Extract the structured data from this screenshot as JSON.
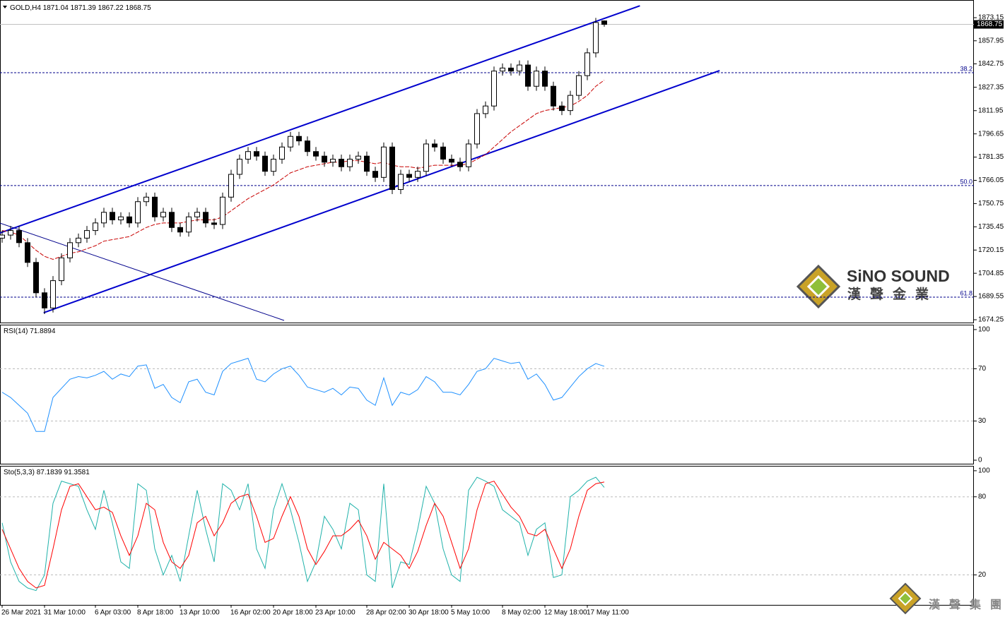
{
  "chart_data": [
    {
      "type": "candlestick",
      "title": "GOLD,H4",
      "categories": [
        "26 Mar 2021",
        null,
        null,
        null,
        null,
        "31 Mar 10:00",
        null,
        null,
        null,
        null,
        null,
        "6 Apr 03:00",
        null,
        null,
        null,
        null,
        "8 Apr 18:00",
        null,
        null,
        null,
        null,
        "13 Apr 10:00",
        null,
        null,
        null,
        null,
        null,
        "16 Apr 02:00",
        null,
        null,
        null,
        null,
        "20 Apr 18:00",
        null,
        null,
        null,
        null,
        "23 Apr 10:00",
        null,
        null,
        null,
        null,
        null,
        "28 Apr 02:00",
        null,
        null,
        null,
        null,
        "30 Apr 18:00",
        null,
        null,
        null,
        null,
        "5 May 10:00",
        null,
        null,
        null,
        null,
        null,
        "8 May 02:00",
        null,
        null,
        null,
        null,
        "12 May 18:00",
        null,
        null,
        null,
        null,
        "17 May 11:00",
        null,
        null
      ],
      "candles": [
        [
          1728,
          1733,
          1725,
          1730
        ],
        [
          1730,
          1736,
          1727,
          1733
        ],
        [
          1733,
          1736,
          1722,
          1725
        ],
        [
          1725,
          1728,
          1709,
          1712
        ],
        [
          1712,
          1715,
          1689,
          1692
        ],
        [
          1692,
          1695,
          1678,
          1682
        ],
        [
          1682,
          1703,
          1679,
          1700
        ],
        [
          1700,
          1718,
          1697,
          1715
        ],
        [
          1715,
          1728,
          1712,
          1725
        ],
        [
          1725,
          1731,
          1722,
          1728
        ],
        [
          1728,
          1736,
          1725,
          1733
        ],
        [
          1733,
          1741,
          1730,
          1738
        ],
        [
          1738,
          1748,
          1735,
          1745
        ],
        [
          1745,
          1748,
          1737,
          1740
        ],
        [
          1740,
          1745,
          1737,
          1742
        ],
        [
          1742,
          1745,
          1735,
          1738
        ],
        [
          1738,
          1755,
          1735,
          1752
        ],
        [
          1752,
          1758,
          1749,
          1755
        ],
        [
          1755,
          1758,
          1739,
          1742
        ],
        [
          1742,
          1748,
          1739,
          1745
        ],
        [
          1745,
          1748,
          1732,
          1735
        ],
        [
          1735,
          1738,
          1729,
          1732
        ],
        [
          1732,
          1745,
          1729,
          1742
        ],
        [
          1742,
          1748,
          1739,
          1745
        ],
        [
          1745,
          1748,
          1735,
          1738
        ],
        [
          1738,
          1741,
          1734,
          1737
        ],
        [
          1737,
          1758,
          1734,
          1755
        ],
        [
          1755,
          1773,
          1752,
          1770
        ],
        [
          1770,
          1783,
          1767,
          1780
        ],
        [
          1780,
          1788,
          1777,
          1785
        ],
        [
          1785,
          1788,
          1779,
          1782
        ],
        [
          1782,
          1785,
          1769,
          1772
        ],
        [
          1772,
          1783,
          1769,
          1780
        ],
        [
          1780,
          1791,
          1777,
          1788
        ],
        [
          1788,
          1798,
          1785,
          1795
        ],
        [
          1795,
          1798,
          1789,
          1792
        ],
        [
          1792,
          1795,
          1782,
          1785
        ],
        [
          1785,
          1788,
          1779,
          1782
        ],
        [
          1782,
          1785,
          1775,
          1778
        ],
        [
          1778,
          1783,
          1775,
          1780
        ],
        [
          1780,
          1783,
          1772,
          1775
        ],
        [
          1775,
          1783,
          1772,
          1780
        ],
        [
          1780,
          1785,
          1777,
          1782
        ],
        [
          1782,
          1785,
          1769,
          1772
        ],
        [
          1772,
          1775,
          1765,
          1768
        ],
        [
          1768,
          1791,
          1765,
          1788
        ],
        [
          1788,
          1791,
          1757,
          1760
        ],
        [
          1760,
          1773,
          1757,
          1770
        ],
        [
          1770,
          1773,
          1765,
          1768
        ],
        [
          1768,
          1775,
          1765,
          1772
        ],
        [
          1772,
          1793,
          1769,
          1790
        ],
        [
          1790,
          1793,
          1785,
          1788
        ],
        [
          1788,
          1791,
          1777,
          1780
        ],
        [
          1780,
          1783,
          1775,
          1778
        ],
        [
          1778,
          1781,
          1772,
          1775
        ],
        [
          1775,
          1793,
          1772,
          1790
        ],
        [
          1790,
          1813,
          1787,
          1810
        ],
        [
          1810,
          1818,
          1807,
          1815
        ],
        [
          1815,
          1841,
          1812,
          1838
        ],
        [
          1838,
          1843,
          1835,
          1840
        ],
        [
          1840,
          1843,
          1835,
          1838
        ],
        [
          1838,
          1845,
          1835,
          1842
        ],
        [
          1842,
          1845,
          1825,
          1828
        ],
        [
          1828,
          1841,
          1825,
          1838
        ],
        [
          1838,
          1841,
          1825,
          1828
        ],
        [
          1828,
          1831,
          1812,
          1815
        ],
        [
          1815,
          1818,
          1809,
          1812
        ],
        [
          1812,
          1825,
          1809,
          1822
        ],
        [
          1822,
          1838,
          1819,
          1835
        ],
        [
          1835,
          1853,
          1832,
          1850
        ],
        [
          1850,
          1873,
          1847,
          1870
        ],
        [
          1871.04,
          1871.39,
          1867.22,
          1868.75
        ]
      ],
      "overlay": {
        "color": "#c80000",
        "values": [
          1733,
          1732,
          1730,
          1725,
          1720,
          1716,
          1714,
          1716,
          1718,
          1719,
          1721,
          1723,
          1726,
          1727,
          1728,
          1729,
          1732,
          1735,
          1737,
          1738,
          1738,
          1738,
          1739,
          1740,
          1740,
          1740,
          1742,
          1746,
          1750,
          1754,
          1757,
          1760,
          1763,
          1767,
          1771,
          1773,
          1775,
          1776,
          1777,
          1778,
          1778,
          1779,
          1779,
          1778,
          1777,
          1778,
          1776,
          1775,
          1775,
          1774,
          1775,
          1776,
          1776,
          1776,
          1776,
          1777,
          1780,
          1783,
          1788,
          1793,
          1798,
          1802,
          1806,
          1810,
          1812,
          1813,
          1814,
          1815,
          1818,
          1822,
          1828,
          1832
        ]
      },
      "trendlines": [
        {
          "x": [
            -0.25,
            75.2
          ],
          "y": [
            1731.4,
            1881.0
          ],
          "color": "#0000cd",
          "width": 2
        },
        {
          "x": [
            4.9,
            84.6
          ],
          "y": [
            1678.9,
            1838.3
          ],
          "color": "#0000cd",
          "width": 2
        },
        {
          "x": [
            -0.25,
            33.25
          ],
          "y": [
            1737.9,
            1673.8
          ],
          "color": "#00008b",
          "width": 1
        }
      ],
      "levels": [
        {
          "label": "38.2",
          "value": 1836.9
        },
        {
          "label": "50.0",
          "value": 1762.6
        },
        {
          "label": "61.8",
          "value": 1689.15
        }
      ],
      "ylim": [
        1672.4,
        1884.8
      ],
      "yticks": [
        1873.15,
        1857.95,
        1842.75,
        1827.35,
        1811.95,
        1796.65,
        1781.35,
        1766.05,
        1750.75,
        1735.45,
        1720.15,
        1704.85,
        1689.55,
        1674.25
      ],
      "watermark": {
        "latin": "SiNO SOUND",
        "chinese": "漢聲金業",
        "footer": "漢聲集團"
      }
    },
    {
      "type": "line",
      "title": "RSI(14)",
      "series": [
        {
          "color": "#1e90ff",
          "values": [
            52,
            48,
            42,
            36,
            22,
            22,
            48,
            55,
            62,
            64,
            63,
            65,
            68,
            62,
            66,
            64,
            72,
            73,
            55,
            58,
            48,
            44,
            60,
            62,
            52,
            50,
            68,
            74,
            76,
            78,
            62,
            60,
            66,
            70,
            72,
            65,
            56,
            54,
            52,
            55,
            50,
            56,
            55,
            46,
            42,
            63,
            42,
            52,
            50,
            54,
            64,
            60,
            52,
            52,
            50,
            58,
            68,
            70,
            78,
            76,
            74,
            75,
            62,
            66,
            58,
            46,
            48,
            56,
            64,
            70,
            74,
            71.8894
          ]
        }
      ],
      "ylim": [
        -2.7,
        103.2
      ],
      "yticks": [
        100,
        70,
        30,
        0
      ],
      "levels": [
        70,
        30
      ]
    },
    {
      "type": "line",
      "title": "Sto(5,3,3)",
      "series": [
        {
          "color": "#20b2aa",
          "values": [
            60,
            30,
            15,
            10,
            8,
            20,
            75,
            92,
            90,
            88,
            70,
            55,
            85,
            60,
            30,
            25,
            90,
            85,
            40,
            20,
            35,
            15,
            50,
            85,
            55,
            30,
            90,
            85,
            70,
            90,
            40,
            25,
            70,
            90,
            70,
            45,
            15,
            30,
            65,
            55,
            40,
            75,
            70,
            20,
            15,
            90,
            10,
            30,
            28,
            55,
            88,
            75,
            40,
            20,
            15,
            85,
            95,
            92,
            88,
            70,
            65,
            60,
            35,
            55,
            60,
            18,
            20,
            80,
            85,
            92,
            95,
            87.1839
          ]
        },
        {
          "color": "#ff0000",
          "values": [
            55,
            40,
            25,
            15,
            10,
            12,
            40,
            70,
            88,
            90,
            80,
            70,
            72,
            68,
            50,
            35,
            50,
            75,
            70,
            45,
            30,
            25,
            35,
            60,
            65,
            50,
            60,
            75,
            80,
            82,
            65,
            45,
            48,
            65,
            80,
            65,
            40,
            28,
            38,
            50,
            50,
            55,
            62,
            50,
            32,
            45,
            40,
            35,
            25,
            38,
            58,
            75,
            65,
            45,
            25,
            40,
            70,
            90,
            92,
            82,
            72,
            65,
            52,
            50,
            55,
            40,
            25,
            40,
            65,
            85,
            90,
            91.3581
          ]
        }
      ],
      "ylim": [
        -3,
        103.2
      ],
      "yticks": [
        100,
        80,
        20
      ],
      "levels": [
        80,
        20
      ]
    }
  ]
}
